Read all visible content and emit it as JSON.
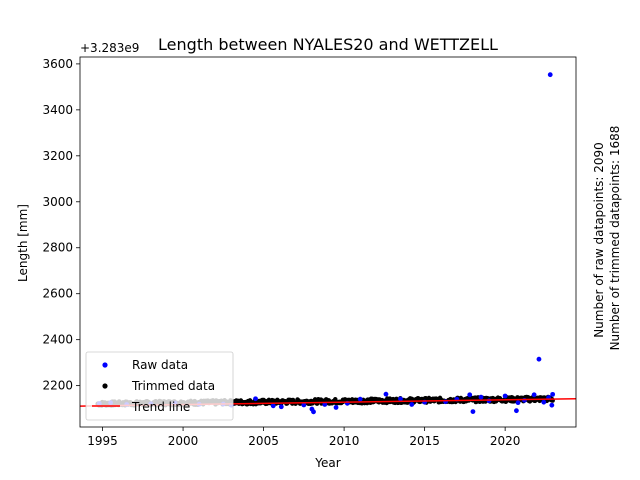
{
  "chart_data": {
    "type": "scatter",
    "title": "Length between NYALES20 and WETTZELL",
    "xlabel": "Year",
    "ylabel": "Length [mm]",
    "offset_label": "+3.283e9",
    "xlim": [
      1993.6,
      2024.4
    ],
    "ylim": [
      2020,
      3630
    ],
    "x_ticks": [
      1995,
      2000,
      2005,
      2010,
      2015,
      2020
    ],
    "y_ticks": [
      2200,
      2400,
      2600,
      2800,
      3000,
      3200,
      3400,
      3600
    ],
    "legend": {
      "position": "lower-left",
      "entries": [
        {
          "label": "Raw data",
          "color": "#0000ff",
          "marker": "dot"
        },
        {
          "label": "Trimmed data",
          "color": "#000000",
          "marker": "dot"
        },
        {
          "label": "Trend line",
          "color": "#ff0000",
          "marker": "line"
        }
      ]
    },
    "side_text": [
      "Number of raw datapoints: 2090",
      "Number of trimmed datapoints: 1688"
    ],
    "series": [
      {
        "name": "Raw data",
        "color": "#0000ff",
        "points": [
          [
            1994.8,
            2122
          ],
          [
            1995.5,
            2126
          ],
          [
            1996.5,
            2118
          ],
          [
            1998.0,
            2121
          ],
          [
            1999.5,
            2124
          ],
          [
            2001.0,
            2119
          ],
          [
            2002.5,
            2120
          ],
          [
            2003.0,
            2115
          ],
          [
            2004.5,
            2143
          ],
          [
            2005.6,
            2112
          ],
          [
            2006.1,
            2108
          ],
          [
            2007.5,
            2116
          ],
          [
            2008.0,
            2098
          ],
          [
            2008.1,
            2086
          ],
          [
            2008.8,
            2118
          ],
          [
            2009.5,
            2105
          ],
          [
            2010.2,
            2123
          ],
          [
            2011.0,
            2141
          ],
          [
            2012.6,
            2163
          ],
          [
            2013.5,
            2142
          ],
          [
            2014.2,
            2118
          ],
          [
            2015.0,
            2128
          ],
          [
            2016.3,
            2130
          ],
          [
            2017.0,
            2141
          ],
          [
            2017.8,
            2160
          ],
          [
            2018.0,
            2087
          ],
          [
            2018.5,
            2150
          ],
          [
            2019.0,
            2134
          ],
          [
            2020.0,
            2155
          ],
          [
            2020.7,
            2091
          ],
          [
            2020.8,
            2126
          ],
          [
            2021.2,
            2136
          ],
          [
            2021.8,
            2160
          ],
          [
            2022.1,
            2315
          ],
          [
            2022.4,
            2128
          ],
          [
            2022.7,
            2148
          ],
          [
            2022.8,
            3553
          ],
          [
            2022.9,
            2115
          ],
          [
            2022.95,
            2162
          ]
        ]
      },
      {
        "name": "Trimmed data",
        "color": "#000000",
        "start_year": 1994.7,
        "end_year": 2022.95,
        "band_low": [
          2112,
          2132
        ],
        "band_high": [
          2130,
          2152
        ]
      },
      {
        "name": "Trend line",
        "color": "#ff0000",
        "points": [
          [
            1993.6,
            2111
          ],
          [
            2024.4,
            2143
          ]
        ]
      }
    ]
  }
}
